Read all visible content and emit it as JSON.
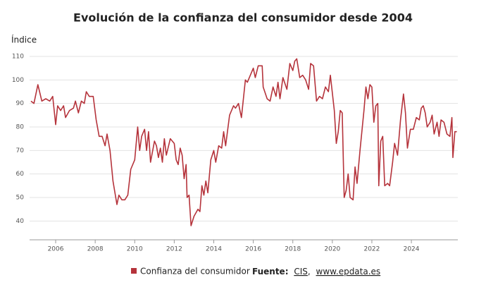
{
  "chart_data": {
    "type": "line",
    "title": "Evolución de la confianza del consumidor desde 2004",
    "y_label": "Índice",
    "xlim": [
      2004.68,
      2026.35
    ],
    "xticks": [
      2006,
      2008,
      2010,
      2012,
      2014,
      2016,
      2018,
      2020,
      2022,
      2024
    ],
    "ylim": [
      32,
      113
    ],
    "yticks": [
      40,
      50,
      60,
      70,
      80,
      90,
      100,
      110
    ],
    "grid": true,
    "x": [
      2004.75,
      2004.9,
      2005.1,
      2005.3,
      2005.5,
      2005.7,
      2005.85,
      2006.0,
      2006.1,
      2006.25,
      2006.4,
      2006.5,
      2006.7,
      2006.9,
      2007.0,
      2007.15,
      2007.3,
      2007.45,
      2007.55,
      2007.7,
      2007.9,
      2008.05,
      2008.2,
      2008.35,
      2008.5,
      2008.6,
      2008.75,
      2008.9,
      2009.0,
      2009.1,
      2009.2,
      2009.35,
      2009.5,
      2009.65,
      2009.8,
      2010.0,
      2010.15,
      2010.25,
      2010.35,
      2010.5,
      2010.6,
      2010.7,
      2010.8,
      2011.0,
      2011.1,
      2011.2,
      2011.3,
      2011.4,
      2011.5,
      2011.6,
      2011.8,
      2012.0,
      2012.1,
      2012.2,
      2012.3,
      2012.4,
      2012.5,
      2012.6,
      2012.65,
      2012.75,
      2012.85,
      2013.0,
      2013.2,
      2013.3,
      2013.4,
      2013.5,
      2013.6,
      2013.7,
      2013.85,
      2014.0,
      2014.1,
      2014.25,
      2014.4,
      2014.5,
      2014.6,
      2014.8,
      2015.0,
      2015.1,
      2015.25,
      2015.4,
      2015.6,
      2015.7,
      2016.0,
      2016.1,
      2016.25,
      2016.45,
      2016.5,
      2016.7,
      2016.85,
      2017.0,
      2017.15,
      2017.25,
      2017.35,
      2017.5,
      2017.7,
      2017.85,
      2018.0,
      2018.1,
      2018.2,
      2018.35,
      2018.5,
      2018.65,
      2018.8,
      2018.9,
      2019.05,
      2019.2,
      2019.35,
      2019.5,
      2019.65,
      2019.8,
      2019.9,
      2020.1,
      2020.2,
      2020.3,
      2020.4,
      2020.5,
      2020.6,
      2020.7,
      2020.8,
      2020.9,
      2021.05,
      2021.15,
      2021.25,
      2021.4,
      2021.6,
      2021.7,
      2021.8,
      2021.9,
      2022.0,
      2022.1,
      2022.2,
      2022.3,
      2022.35,
      2022.45,
      2022.55,
      2022.65,
      2022.8,
      2022.9,
      2023.05,
      2023.15,
      2023.3,
      2023.45,
      2023.6,
      2023.7,
      2023.8,
      2023.95,
      2024.1,
      2024.25,
      2024.4,
      2024.5,
      2024.6,
      2024.7,
      2024.8,
      2024.95,
      2025.05,
      2025.15,
      2025.3,
      2025.4,
      2025.5,
      2025.65,
      2025.8,
      2025.95,
      2026.05,
      2026.1,
      2026.2,
      2026.3
    ],
    "series": [
      {
        "name": "Confianza del consumidor",
        "color": "#b5333b",
        "values": [
          91,
          90,
          98,
          91,
          92,
          91,
          93,
          81,
          89,
          87,
          89,
          84,
          87,
          88,
          91,
          86,
          91,
          90,
          95,
          93,
          93,
          83,
          76,
          76,
          72,
          77,
          70,
          57,
          52,
          47,
          51,
          49,
          49,
          51,
          62,
          66,
          80,
          70,
          76,
          79,
          70,
          78,
          65,
          74,
          72,
          67,
          71,
          65,
          75,
          68,
          75,
          73,
          66,
          64,
          71,
          68,
          58,
          64,
          50,
          51,
          38,
          42,
          45,
          44,
          55,
          51,
          57,
          52,
          66,
          70,
          65,
          72,
          71,
          78,
          72,
          85,
          89,
          88,
          90,
          84,
          100,
          99,
          105,
          101,
          106,
          106,
          97,
          92,
          91,
          97,
          93,
          99,
          92,
          101,
          96,
          107,
          104,
          108,
          109,
          101,
          102,
          100,
          96,
          107,
          106,
          91,
          93,
          92,
          97,
          95,
          102,
          87,
          73,
          78,
          87,
          86,
          50,
          53,
          60,
          50,
          49,
          63,
          56,
          70,
          87,
          97,
          92,
          98,
          97,
          82,
          89,
          90,
          55,
          74,
          76,
          55,
          56,
          55,
          65,
          73,
          68,
          83,
          94,
          86,
          71,
          79,
          79,
          84,
          83,
          88,
          89,
          86,
          80,
          82,
          85,
          77,
          82,
          76,
          83,
          82,
          77,
          76,
          84,
          67,
          78,
          78
        ]
      }
    ],
    "source_label": "Fuente:",
    "source_links": [
      "CIS",
      "www.epdata.es"
    ],
    "source_separator": ","
  }
}
